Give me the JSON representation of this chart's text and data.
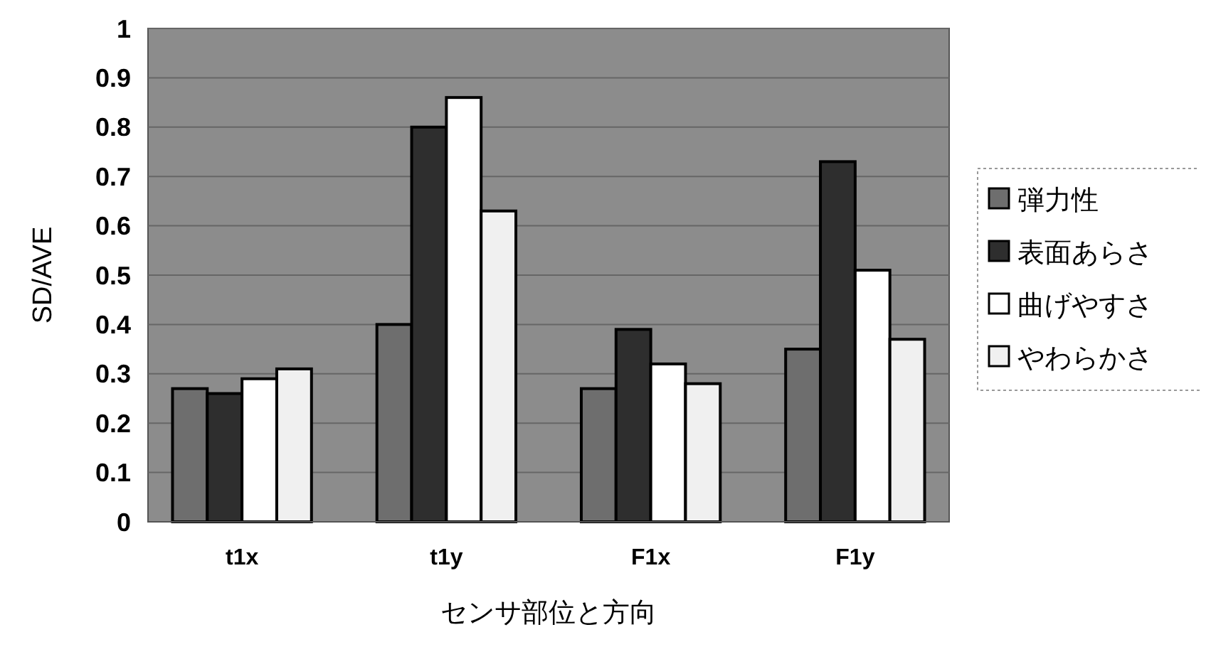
{
  "chart_data": {
    "type": "bar",
    "xlabel": "センサ部位と方向",
    "ylabel": "SD/AVE",
    "categories": [
      "t1x",
      "t1y",
      "F1x",
      "F1y"
    ],
    "series": [
      {
        "name": "弾力性",
        "color": "#6e6e6e",
        "values": [
          0.27,
          0.4,
          0.27,
          0.35
        ]
      },
      {
        "name": "表面あらさ",
        "color": "#2e2e2e",
        "values": [
          0.26,
          0.8,
          0.39,
          0.73
        ]
      },
      {
        "name": "曲げやすさ",
        "color": "#ffffff",
        "values": [
          0.29,
          0.86,
          0.32,
          0.51
        ]
      },
      {
        "name": "やわらかさ",
        "color": "#f0f0f0",
        "values": [
          0.31,
          0.63,
          0.28,
          0.37
        ]
      }
    ],
    "ylim": [
      0,
      1
    ],
    "yticks": [
      0,
      0.1,
      0.2,
      0.3,
      0.4,
      0.5,
      0.6,
      0.7,
      0.8,
      0.9,
      1
    ],
    "grid": "y",
    "legend": "right"
  }
}
